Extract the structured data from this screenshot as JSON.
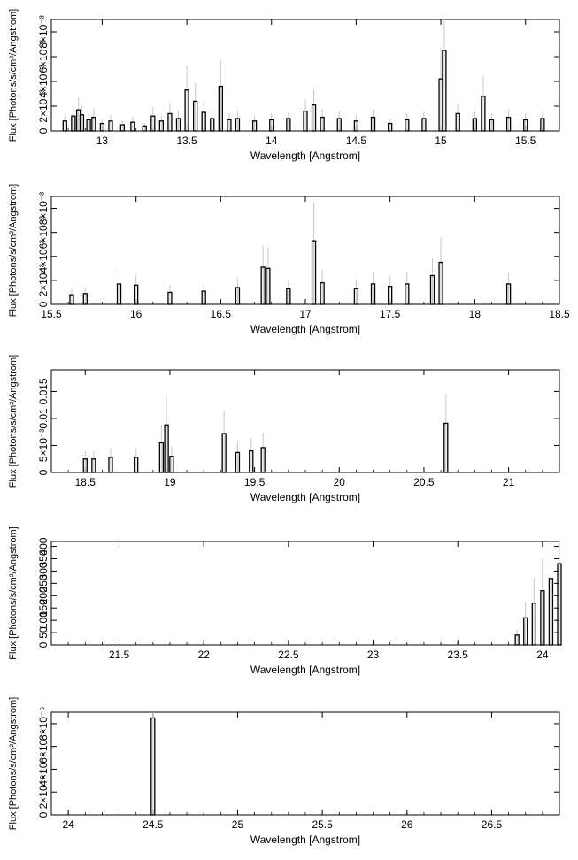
{
  "chart_data": [
    {
      "type": "bar",
      "xlabel": "Wavelength [Angstrom]",
      "ylabel": "Flux [Photons/s/cm²/Angstrom]",
      "xlim": [
        12.7,
        15.7
      ],
      "ylim": [
        0,
        0.009
      ],
      "xticks": [
        13,
        13.5,
        14,
        14.5,
        15,
        15.5
      ],
      "xtick_labels": [
        "13",
        "13.5",
        "14",
        "14.5",
        "15",
        "15.5"
      ],
      "yticks": [
        0,
        0.002,
        0.004,
        0.006,
        0.008
      ],
      "ytick_labels": [
        "0",
        "2×10⁻³",
        "4×10⁻³",
        "6×10⁻³",
        "8×10⁻³"
      ],
      "series": [
        {
          "values_x": [
            12.78,
            12.83,
            12.86,
            12.88,
            12.92,
            12.95,
            13.0,
            13.05,
            13.12,
            13.18,
            13.25,
            13.3,
            13.35,
            13.4,
            13.45,
            13.5,
            13.55,
            13.6,
            13.65,
            13.7,
            13.75,
            13.8,
            13.9,
            14.0,
            14.1,
            14.2,
            14.25,
            14.3,
            14.4,
            14.5,
            14.6,
            14.7,
            14.8,
            14.9,
            15.0,
            15.02,
            15.1,
            15.2,
            15.25,
            15.3,
            15.4,
            15.5,
            15.6
          ],
          "values_y": [
            0.0008,
            0.0012,
            0.0017,
            0.0013,
            0.0009,
            0.0011,
            0.0006,
            0.0008,
            0.0005,
            0.0007,
            0.0004,
            0.0012,
            0.0008,
            0.0014,
            0.001,
            0.0033,
            0.0024,
            0.0015,
            0.001,
            0.0036,
            0.0009,
            0.001,
            0.0008,
            0.0009,
            0.001,
            0.0016,
            0.0021,
            0.0011,
            0.001,
            0.0008,
            0.0011,
            0.0006,
            0.0009,
            0.001,
            0.0042,
            0.0065,
            0.0014,
            0.001,
            0.0028,
            0.0009,
            0.0011,
            0.0009,
            0.001
          ]
        }
      ]
    },
    {
      "type": "bar",
      "xlabel": "Wavelength [Angstrom]",
      "ylabel": "Flux [Photons/s/cm²/Angstrom]",
      "xlim": [
        15.5,
        18.5
      ],
      "ylim": [
        0,
        0.009
      ],
      "xticks": [
        15.5,
        16,
        16.5,
        17,
        17.5,
        18,
        18.5
      ],
      "xtick_labels": [
        "15.5",
        "16",
        "16.5",
        "17",
        "17.5",
        "18",
        "18.5"
      ],
      "yticks": [
        0,
        0.002,
        0.004,
        0.006,
        0.008
      ],
      "ytick_labels": [
        "0",
        "2×10⁻³",
        "4×10⁻³",
        "6×10⁻³",
        "8×10⁻³"
      ],
      "series": [
        {
          "values_x": [
            15.62,
            15.7,
            15.9,
            16.0,
            16.2,
            16.4,
            16.6,
            16.75,
            16.78,
            16.9,
            17.05,
            17.1,
            17.3,
            17.4,
            17.5,
            17.6,
            17.75,
            17.8,
            18.2
          ],
          "values_y": [
            0.0008,
            0.0009,
            0.0017,
            0.0016,
            0.001,
            0.0011,
            0.0014,
            0.0031,
            0.003,
            0.0013,
            0.0053,
            0.0018,
            0.0013,
            0.0017,
            0.0015,
            0.0017,
            0.0024,
            0.0035,
            0.0017
          ]
        }
      ]
    },
    {
      "type": "bar",
      "xlabel": "Wavelength [Angstrom]",
      "ylabel": "Flux [Photons/s/cm²/Angstrom]",
      "xlim": [
        18.3,
        21.3
      ],
      "ylim": [
        0,
        0.019
      ],
      "xticks": [
        18.5,
        19,
        19.5,
        20,
        20.5,
        21
      ],
      "xtick_labels": [
        "18.5",
        "19",
        "19.5",
        "20",
        "20.5",
        "21"
      ],
      "yticks": [
        0,
        0.005,
        0.01,
        0.015
      ],
      "ytick_labels": [
        "0",
        "5×10⁻³",
        "0.01",
        "0.015"
      ],
      "series": [
        {
          "values_x": [
            18.5,
            18.55,
            18.65,
            18.8,
            18.95,
            18.98,
            19.01,
            19.32,
            19.4,
            19.48,
            19.55,
            20.63
          ],
          "values_y": [
            0.0025,
            0.0025,
            0.0028,
            0.0028,
            0.0055,
            0.0088,
            0.003,
            0.0072,
            0.0037,
            0.004,
            0.0046,
            0.0091
          ]
        }
      ]
    },
    {
      "type": "bar",
      "xlabel": "Wavelength [Angstrom]",
      "ylabel": "Flux [Photons/s/cm²/Angstrom]",
      "xlim": [
        21.1,
        24.1
      ],
      "ylim": [
        0,
        420
      ],
      "xticks": [
        21.5,
        22,
        22.5,
        23,
        23.5,
        24
      ],
      "xtick_labels": [
        "21.5",
        "22",
        "22.5",
        "23",
        "23.5",
        "24"
      ],
      "yticks": [
        0,
        50,
        100,
        150,
        200,
        250,
        300,
        350,
        400
      ],
      "ytick_labels": [
        "0",
        "50",
        "100",
        "150",
        "200",
        "250",
        "300",
        "350",
        "400"
      ],
      "series": [
        {
          "values_x": [
            23.85,
            23.9,
            23.95,
            24.0,
            24.05,
            24.1
          ],
          "values_y": [
            40,
            110,
            170,
            220,
            270,
            330
          ]
        }
      ]
    },
    {
      "type": "bar",
      "xlabel": "Wavelength [Angstrom]",
      "ylabel": "Flux [Photons/s/cm²/Angstrom]",
      "xlim": [
        23.9,
        26.9
      ],
      "ylim": [
        0,
        9e-06
      ],
      "xticks": [
        24,
        24.5,
        25,
        25.5,
        26,
        26.5
      ],
      "xtick_labels": [
        "24",
        "24.5",
        "25",
        "25.5",
        "26",
        "26.5"
      ],
      "yticks": [
        0,
        2e-06,
        4e-06,
        6e-06,
        8e-06
      ],
      "ytick_labels": [
        "0",
        "2×10⁻⁶",
        "4×10⁻⁶",
        "6×10⁻⁶",
        "8×10⁻⁶"
      ],
      "series": [
        {
          "values_x": [
            24.5
          ],
          "values_y": [
            8.5e-06
          ]
        }
      ]
    }
  ]
}
